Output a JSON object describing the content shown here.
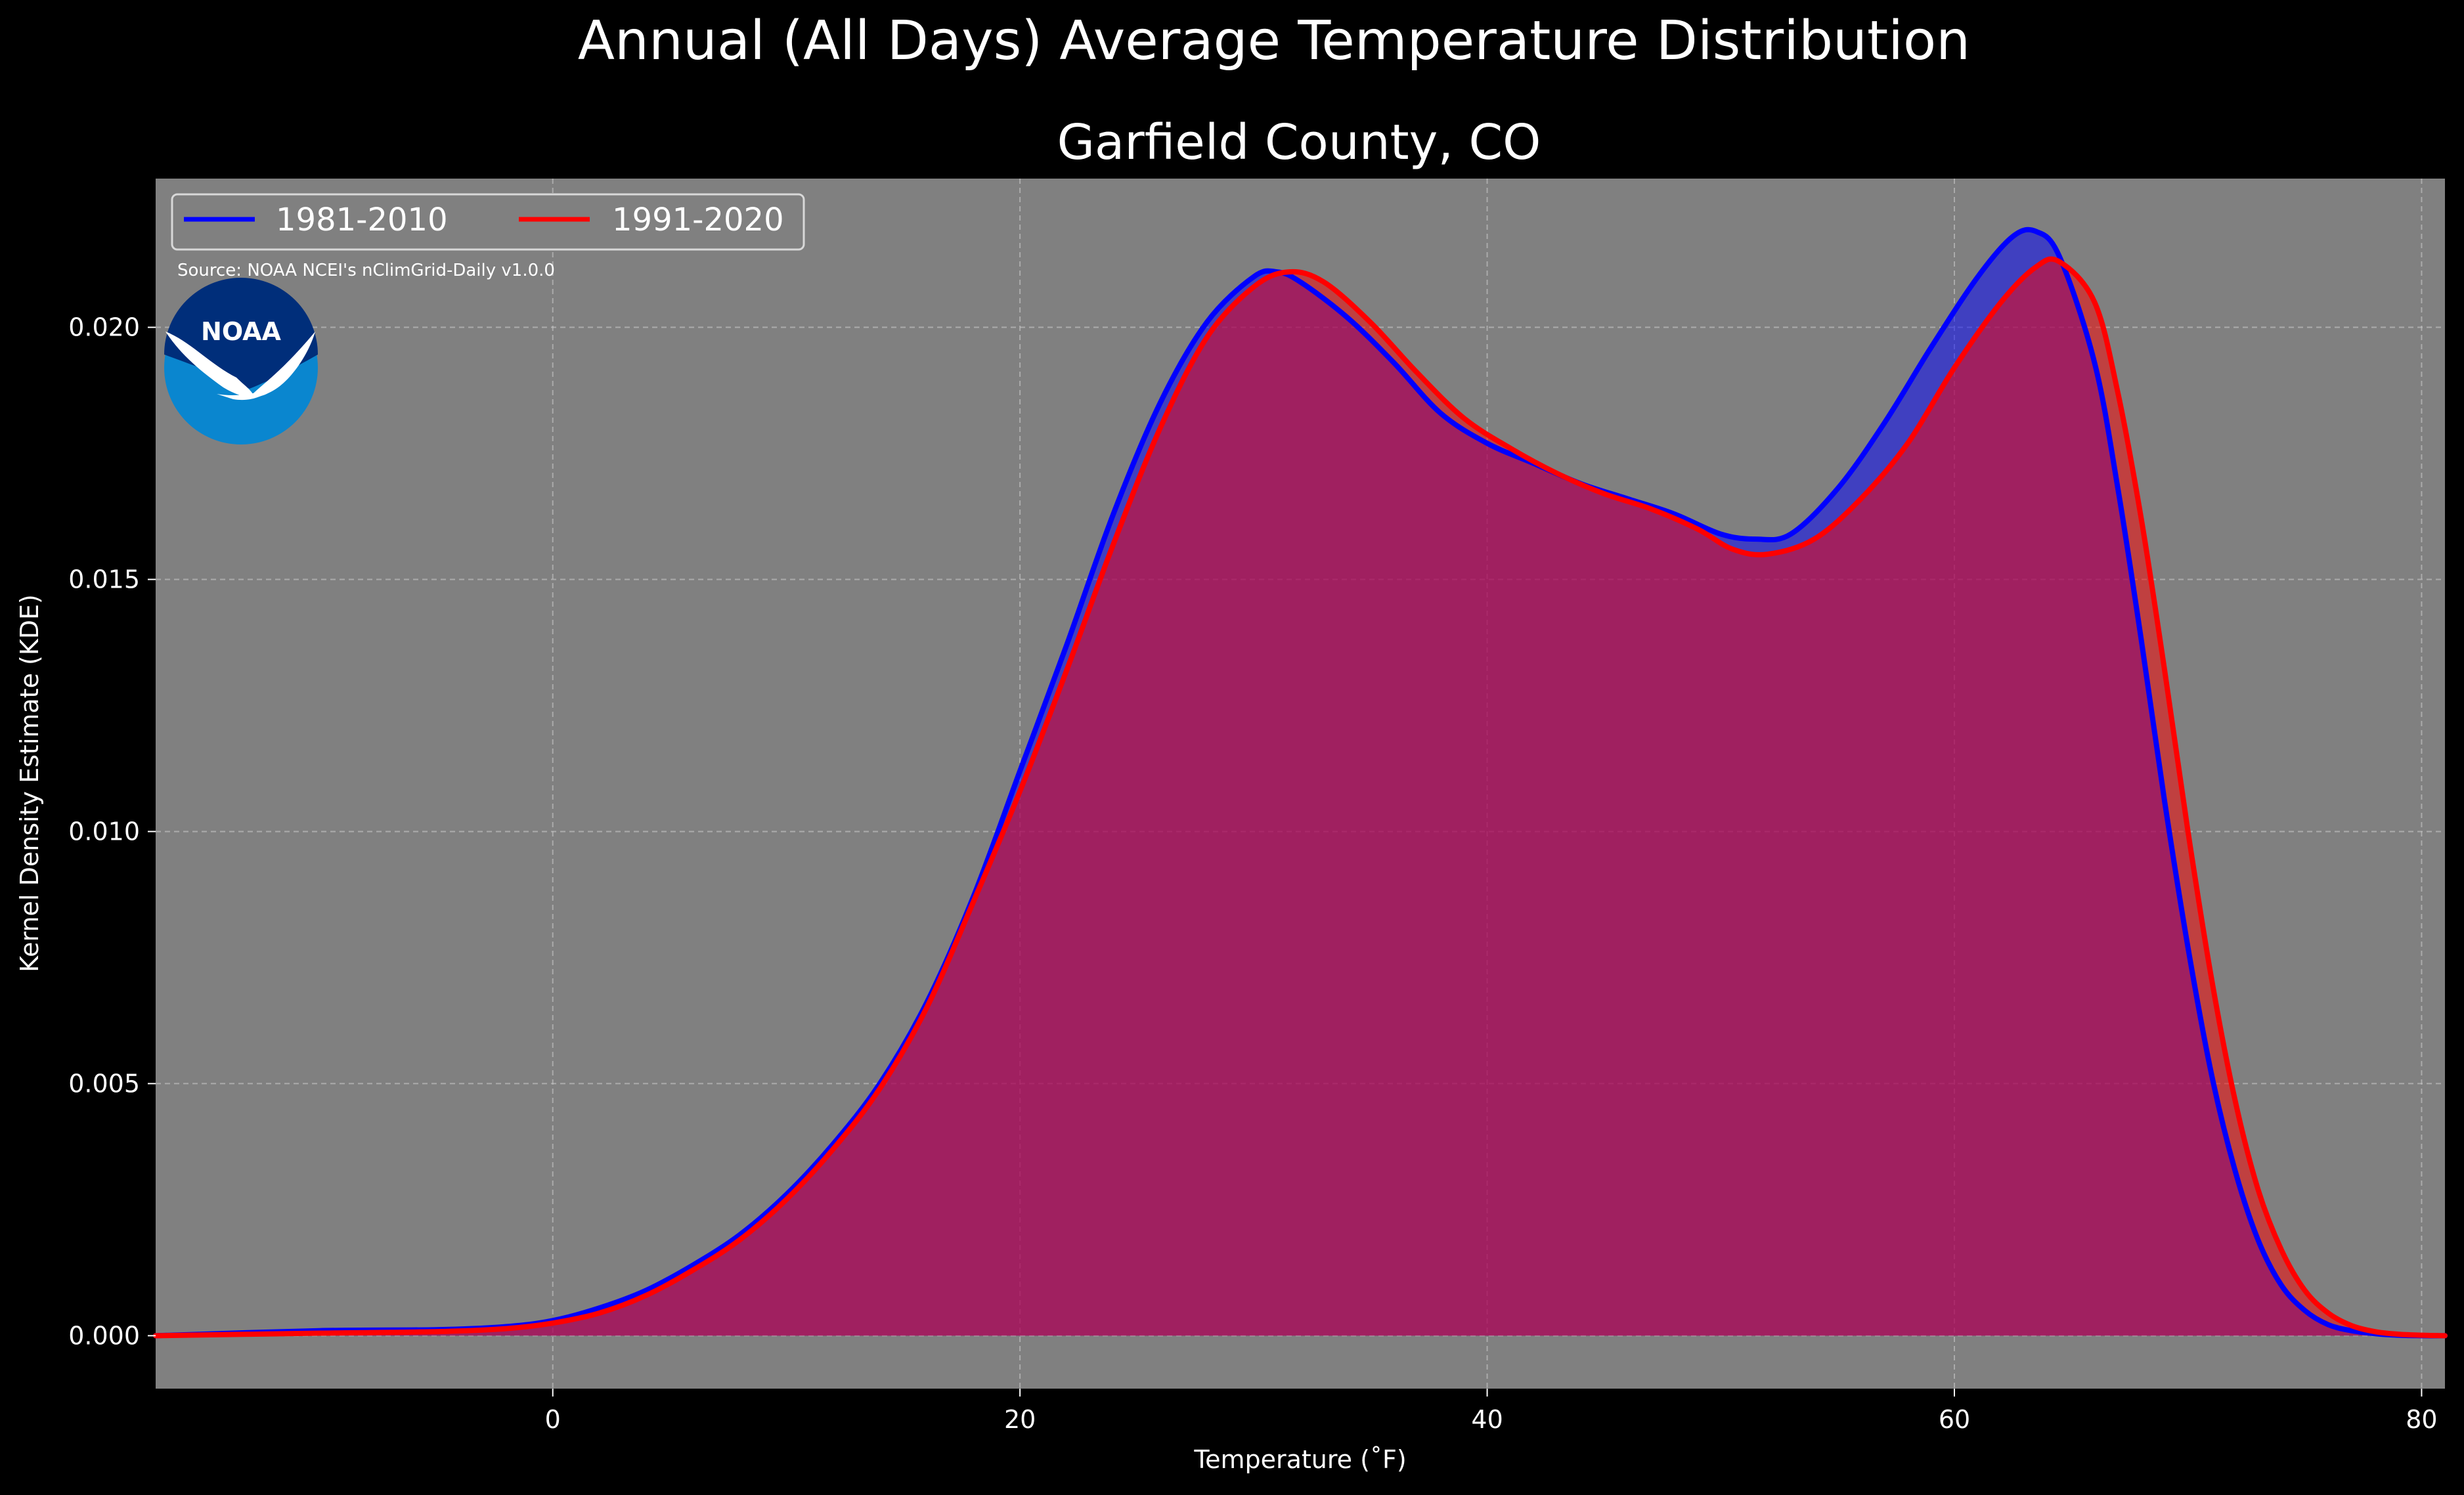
{
  "figure": {
    "suptitle": "Annual (All Days) Average Temperature Distribution",
    "source": "Source: NOAA NCEI's nClimGrid-Daily v1.0.0",
    "logo_text": "NOAA",
    "background": "#000000",
    "axes_background": "#808080"
  },
  "chart_data": {
    "type": "area",
    "title": "Garfield County, CO",
    "xlabel": "Temperature ($^\\circ$F)",
    "xlabel_display": "Temperature (˚F)",
    "ylabel": "Kernel Density Estimate (KDE)",
    "xlim": [
      -17,
      81
    ],
    "ylim": [
      -0.00105,
      0.02295
    ],
    "x_ticks": [
      0,
      20,
      40,
      60,
      80
    ],
    "x_tick_labels": [
      "0",
      "20",
      "40",
      "60",
      "80"
    ],
    "y_ticks": [
      0.0,
      0.005,
      0.01,
      0.015,
      0.02
    ],
    "y_tick_labels": [
      "0.000",
      "0.005",
      "0.010",
      "0.015",
      "0.020"
    ],
    "grid": true,
    "legend_position": "top-left",
    "series": [
      {
        "name": "1981-2010",
        "color": "#0000ff",
        "fill": "rgba(0,0,255,0.5)",
        "x": [
          -17,
          -10,
          -5,
          -2,
          0,
          2,
          4,
          6,
          8,
          10,
          12,
          14,
          16,
          18,
          20,
          22,
          24,
          26,
          28,
          30,
          31,
          32,
          34,
          36,
          38,
          40,
          42,
          44,
          46,
          48,
          50,
          51.5,
          53,
          55,
          57,
          59,
          61,
          62.5,
          63.5,
          64.5,
          66,
          67,
          68,
          69,
          70,
          71,
          72,
          73,
          74,
          75,
          76,
          77,
          78,
          79,
          80,
          81
        ],
        "y": [
          0.0,
          0.0001,
          0.00012,
          0.00018,
          0.0003,
          0.00055,
          0.0009,
          0.0014,
          0.002,
          0.0028,
          0.0038,
          0.005,
          0.0066,
          0.0087,
          0.0112,
          0.0137,
          0.0163,
          0.0185,
          0.0201,
          0.021,
          0.0211,
          0.0209,
          0.0202,
          0.0193,
          0.0183,
          0.0177,
          0.0173,
          0.0169,
          0.0166,
          0.0163,
          0.0159,
          0.0158,
          0.0159,
          0.0168,
          0.0181,
          0.0196,
          0.021,
          0.0218,
          0.0219,
          0.0214,
          0.0193,
          0.0168,
          0.0138,
          0.0106,
          0.0077,
          0.0052,
          0.0033,
          0.0019,
          0.001,
          0.0005,
          0.00022,
          0.0001,
          4e-05,
          1e-05,
          0.0,
          0.0
        ]
      },
      {
        "name": "1991-2020",
        "color": "#ff0000",
        "fill": "rgba(255,0,0,0.5)",
        "x": [
          -17,
          -10,
          -5,
          -2,
          0,
          2,
          4,
          6,
          8,
          10,
          12,
          14,
          16,
          18,
          20,
          22,
          24,
          26,
          28,
          30,
          31.5,
          33,
          35,
          37,
          39,
          41,
          43,
          45,
          47,
          49,
          50.5,
          52,
          54,
          56,
          58,
          60,
          62,
          63.5,
          64.5,
          66,
          67,
          68,
          69,
          70,
          71,
          72,
          73,
          74,
          75,
          76,
          77,
          78,
          79,
          80,
          81
        ],
        "y": [
          0.0,
          5e-05,
          8e-05,
          0.00014,
          0.00025,
          0.00045,
          0.0008,
          0.0013,
          0.0019,
          0.0027,
          0.0037,
          0.0049,
          0.0065,
          0.0086,
          0.0108,
          0.0132,
          0.0157,
          0.018,
          0.0198,
          0.0208,
          0.0211,
          0.0209,
          0.0201,
          0.0191,
          0.0182,
          0.0176,
          0.0171,
          0.0167,
          0.0164,
          0.016,
          0.0156,
          0.0155,
          0.0158,
          0.0166,
          0.0177,
          0.0192,
          0.0205,
          0.0212,
          0.0213,
          0.0205,
          0.0187,
          0.0162,
          0.0132,
          0.01,
          0.0071,
          0.0047,
          0.0029,
          0.0017,
          0.0009,
          0.00045,
          0.0002,
          8e-05,
          3e-05,
          1e-05,
          0.0
        ]
      }
    ]
  }
}
